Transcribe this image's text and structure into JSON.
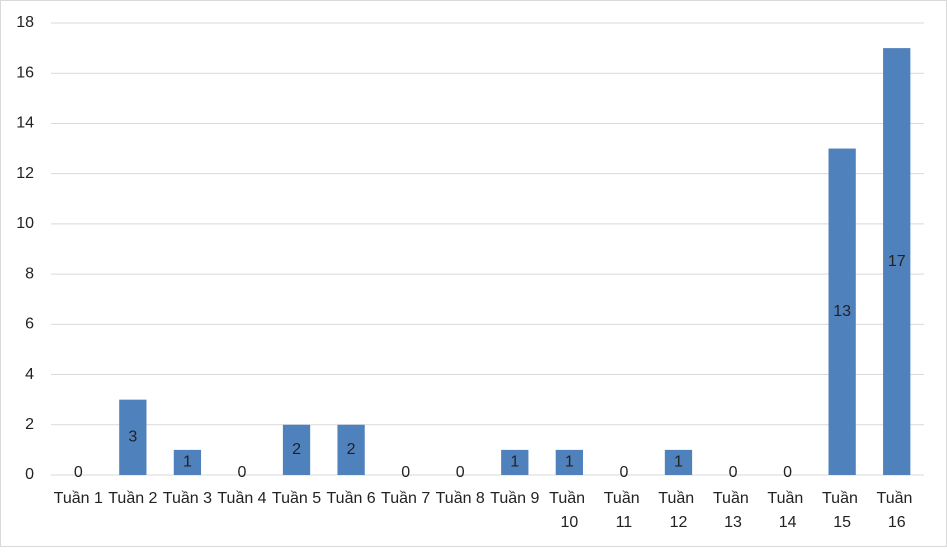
{
  "chart_data": {
    "type": "bar",
    "categories": [
      "Tuần 1",
      "Tuần 2",
      "Tuần 3",
      "Tuần 4",
      "Tuần 5",
      "Tuần 6",
      "Tuần 7",
      "Tuần 8",
      "Tuần 9",
      "Tuần 10",
      "Tuần 11",
      "Tuần 12",
      "Tuần 13",
      "Tuần 14",
      "Tuần 15",
      "Tuần 16"
    ],
    "values": [
      0,
      3,
      1,
      0,
      2,
      2,
      0,
      0,
      1,
      1,
      0,
      1,
      0,
      0,
      13,
      17
    ],
    "color": "#4f81bd",
    "ylim": [
      0,
      18
    ],
    "yticks": [
      0,
      2,
      4,
      6,
      8,
      10,
      12,
      14,
      16,
      18
    ],
    "grid": true
  }
}
